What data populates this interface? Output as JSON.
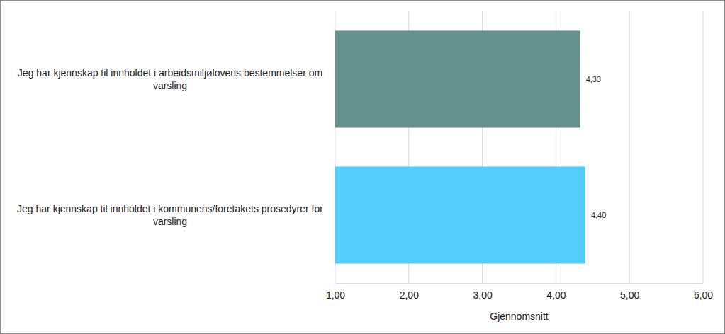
{
  "chart_data": {
    "type": "bar",
    "orientation": "horizontal",
    "categories": [
      "Jeg har kjennskap til innholdet i arbeidsmiljølovens bestemmelser om varsling",
      "Jeg har kjennskap til innholdet i kommunens/foretakets prosedyrer for varsling"
    ],
    "values": [
      4.33,
      4.4
    ],
    "value_labels": [
      "4,33",
      "4,40"
    ],
    "colors": [
      "#65908c",
      "#54cdfb"
    ],
    "xlabel": "Gjennomsnitt",
    "xlim": [
      1,
      6
    ],
    "xticks": [
      {
        "value": 1,
        "label": "1,00"
      },
      {
        "value": 2,
        "label": "2,00"
      },
      {
        "value": 3,
        "label": "3,00"
      },
      {
        "value": 4,
        "label": "4,00"
      },
      {
        "value": 5,
        "label": "5,00"
      },
      {
        "value": 6,
        "label": "6,00"
      }
    ],
    "grid": true,
    "data_labels": true
  }
}
